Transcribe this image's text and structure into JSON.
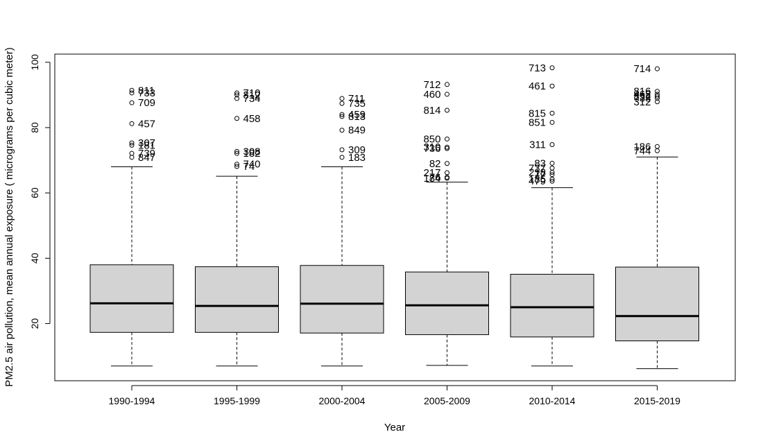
{
  "chart_data": {
    "type": "box",
    "title": "",
    "xlabel": "Year",
    "ylabel": "PM2.5 air pollution, mean annual exposure ( micrograms per cubic meter)",
    "ylim": [
      2.5,
      102.5
    ],
    "yticks": [
      20,
      40,
      60,
      80,
      100
    ],
    "grid": false,
    "box_fill": "#d3d3d3",
    "groups": [
      {
        "label": "1990-1994",
        "min": 7,
        "q1": 17.3,
        "median": 26.2,
        "q3": 38.0,
        "max": 68.0,
        "outliers": [
          {
            "v": 91.4,
            "id": "811",
            "side": "right"
          },
          {
            "v": 90.6,
            "id": "733",
            "side": "right"
          },
          {
            "v": 87.6,
            "id": "709",
            "side": "right"
          },
          {
            "v": 81.2,
            "id": "457",
            "side": "right"
          },
          {
            "v": 75.3,
            "id": "307",
            "side": "right"
          },
          {
            "v": 74.6,
            "id": "181",
            "side": "right"
          },
          {
            "v": 72.1,
            "id": "739",
            "side": "right"
          },
          {
            "v": 70.9,
            "id": "847",
            "side": "right"
          }
        ]
      },
      {
        "label": "1995-1999",
        "min": 7,
        "q1": 17.3,
        "median": 25.4,
        "q3": 37.4,
        "max": 65.1,
        "outliers": [
          {
            "v": 90.6,
            "id": "710",
            "side": "right"
          },
          {
            "v": 90.0,
            "id": "812",
            "side": "right"
          },
          {
            "v": 88.9,
            "id": "734",
            "side": "right"
          },
          {
            "v": 82.8,
            "id": "458",
            "side": "right"
          },
          {
            "v": 72.7,
            "id": "308",
            "side": "right"
          },
          {
            "v": 72.1,
            "id": "182",
            "side": "right"
          },
          {
            "v": 68.8,
            "id": "740",
            "side": "right"
          },
          {
            "v": 68.1,
            "id": "74",
            "side": "right"
          }
        ]
      },
      {
        "label": "2000-2004",
        "min": 7,
        "q1": 17.1,
        "median": 26.1,
        "q3": 37.8,
        "max": 68.0,
        "outliers": [
          {
            "v": 88.9,
            "id": "711",
            "side": "right"
          },
          {
            "v": 87.4,
            "id": "735",
            "side": "right"
          },
          {
            "v": 84.0,
            "id": "459",
            "side": "right"
          },
          {
            "v": 83.4,
            "id": "813",
            "side": "right"
          },
          {
            "v": 79.2,
            "id": "849",
            "side": "right"
          },
          {
            "v": 73.2,
            "id": "309",
            "side": "right"
          },
          {
            "v": 70.9,
            "id": "183",
            "side": "right"
          }
        ]
      },
      {
        "label": "2005-2009",
        "min": 7.2,
        "q1": 16.6,
        "median": 25.6,
        "q3": 35.8,
        "max": 63.3,
        "outliers": [
          {
            "v": 93.2,
            "id": "712",
            "side": "left"
          },
          {
            "v": 90.2,
            "id": "460",
            "side": "left"
          },
          {
            "v": 85.3,
            "id": "814",
            "side": "left"
          },
          {
            "v": 76.5,
            "id": "850",
            "side": "left"
          },
          {
            "v": 74.0,
            "id": "310",
            "side": "left"
          },
          {
            "v": 73.6,
            "id": "736",
            "side": "left"
          },
          {
            "v": 69.0,
            "id": "82",
            "side": "left"
          },
          {
            "v": 66.2,
            "id": "217",
            "side": "left"
          },
          {
            "v": 64.8,
            "id": "76",
            "side": "left"
          },
          {
            "v": 64.5,
            "id": "184",
            "side": "left"
          }
        ]
      },
      {
        "label": "2010-2014",
        "min": 7,
        "q1": 15.9,
        "median": 25.0,
        "q3": 35.1,
        "max": 61.6,
        "outliers": [
          {
            "v": 98.3,
            "id": "713",
            "side": "left"
          },
          {
            "v": 92.7,
            "id": "461",
            "side": "left"
          },
          {
            "v": 84.4,
            "id": "815",
            "side": "left"
          },
          {
            "v": 81.6,
            "id": "851",
            "side": "left"
          },
          {
            "v": 74.8,
            "id": "311",
            "side": "left"
          },
          {
            "v": 69.1,
            "id": "83",
            "side": "left"
          },
          {
            "v": 67.6,
            "id": "737",
            "side": "left"
          },
          {
            "v": 66.3,
            "id": "218",
            "side": "left"
          },
          {
            "v": 65.6,
            "id": "77",
            "side": "left"
          },
          {
            "v": 64.2,
            "id": "185",
            "side": "left"
          },
          {
            "v": 63.6,
            "id": "479",
            "side": "left"
          }
        ]
      },
      {
        "label": "2015-2019",
        "min": 6.2,
        "q1": 14.7,
        "median": 22.3,
        "q3": 37.3,
        "max": 71.0,
        "outliers": [
          {
            "v": 98.0,
            "id": "714",
            "side": "left"
          },
          {
            "v": 91.1,
            "id": "816",
            "side": "left"
          },
          {
            "v": 90.2,
            "id": "462",
            "side": "left"
          },
          {
            "v": 89.6,
            "id": "852",
            "side": "left"
          },
          {
            "v": 89.0,
            "id": "738",
            "side": "left"
          },
          {
            "v": 87.9,
            "id": "312",
            "side": "left"
          },
          {
            "v": 74.2,
            "id": "186",
            "side": "left"
          },
          {
            "v": 72.9,
            "id": "744",
            "side": "left"
          }
        ]
      }
    ]
  }
}
